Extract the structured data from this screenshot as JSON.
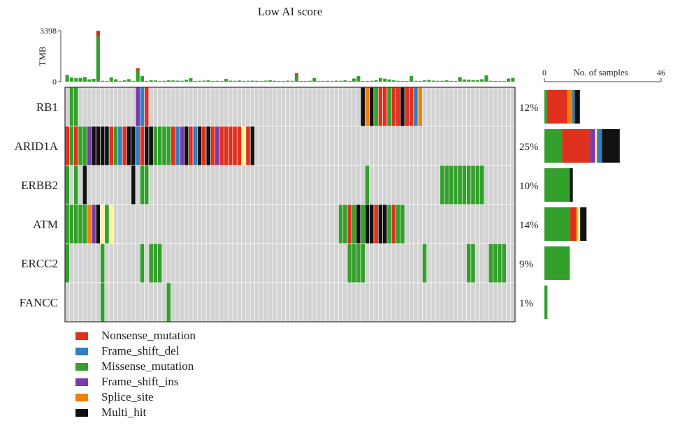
{
  "chart_data": {
    "type": "heatmap",
    "title": "Low AI score",
    "tmb": {
      "ylabel": "TMB",
      "ymax_label": "3398",
      "ymin_label": "0",
      "ylim": [
        0,
        3398
      ],
      "values": [
        450,
        280,
        230,
        250,
        310,
        150,
        190,
        3398,
        60,
        40,
        290,
        160,
        40,
        90,
        170,
        50,
        900,
        380,
        40,
        100,
        80,
        50,
        60,
        90,
        80,
        70,
        60,
        130,
        230,
        50,
        60,
        70,
        90,
        50,
        60,
        40,
        180,
        70,
        60,
        80,
        50,
        60,
        70,
        60,
        50,
        70,
        90,
        60,
        50,
        40,
        70,
        60,
        560,
        50,
        40,
        60,
        250,
        50,
        40,
        60,
        50,
        70,
        60,
        90,
        50,
        210,
        370,
        50,
        40,
        60,
        90,
        250,
        200,
        150,
        90,
        60,
        40,
        50,
        370,
        60,
        40,
        90,
        120,
        70,
        60,
        60,
        90,
        50,
        40,
        310,
        150,
        130,
        110,
        100,
        160,
        430,
        60,
        50,
        40,
        50,
        210,
        250
      ]
    },
    "genes": [
      "RB1",
      "ARID1A",
      "ERBB2",
      "ATM",
      "ERCC2",
      "FANCC"
    ],
    "percentages": [
      "12%",
      "25%",
      "10%",
      "14%",
      "9%",
      "1%"
    ],
    "n_samples": 102,
    "rows": [
      "0MM0000000000000IFN000000000000000000000000000000000000000000000000XSXMNNMNNXNNFS0000000000000000000",
      "NMNMMIXXXXNMFNXXFNXXMMMMNFIXNFXNXNINNNNNYNX000000000000000000000000000000000000000000000000000000000",
      "M0M0X0000000000X0MM0000000000000000000000000000000000000000000000000M0000000000000000MMMMMMMMMM00000",
      "MMMMMSIXYMY000000000000000000000000000000000000000000000000000MMNMXMXXNXXMNMM00000000000000000000000",
      "M0000000M00000000M0MMM000000000000000000000000000000000000000000MMMM0000000000000M000000000MM000MMMM",
      "00000000M00000000000000M000000000000000000000000000000000000000000000000000000000000000000000000000"
    ],
    "counts_label": "No. of samples",
    "counts_axis_min_label": "0",
    "counts_axis_max_label": "46",
    "counts_max": 46,
    "counts": [
      [
        [
          "M",
          1
        ],
        [
          "N",
          8
        ],
        [
          "S",
          2
        ],
        [
          "I",
          0
        ],
        [
          "F",
          1
        ],
        [
          "X",
          2
        ]
      ],
      [
        [
          "M",
          7
        ],
        [
          "N",
          11
        ],
        [
          "I",
          2
        ],
        [
          "Y",
          0.7
        ],
        [
          "F",
          2
        ],
        [
          "X",
          7
        ]
      ],
      [
        [
          "M",
          10
        ],
        [
          "X",
          1.2
        ]
      ],
      [
        [
          "M",
          10
        ],
        [
          "N",
          2.5
        ],
        [
          "S",
          0.6
        ],
        [
          "Y",
          1
        ],
        [
          "X",
          2.5
        ]
      ],
      [
        [
          "M",
          10
        ]
      ],
      [
        [
          "M",
          1.2
        ]
      ]
    ],
    "legend": [
      {
        "code": "N",
        "label": "Nonsense_mutation"
      },
      {
        "code": "F",
        "label": "Frame_shift_del"
      },
      {
        "code": "M",
        "label": "Missense_mutation"
      },
      {
        "code": "I",
        "label": "Frame_shift_ins"
      },
      {
        "code": "S",
        "label": "Splice_site"
      },
      {
        "code": "X",
        "label": "Multi_hit"
      }
    ],
    "colors": {
      "N": "#e0301e",
      "F": "#2f7fc1",
      "M": "#33a02c",
      "I": "#7b3aab",
      "S": "#f0800c",
      "X": "#111111",
      "Y": "#fff29e",
      "none": "#d3d3d3",
      "cell_border": "#ffffff"
    }
  }
}
